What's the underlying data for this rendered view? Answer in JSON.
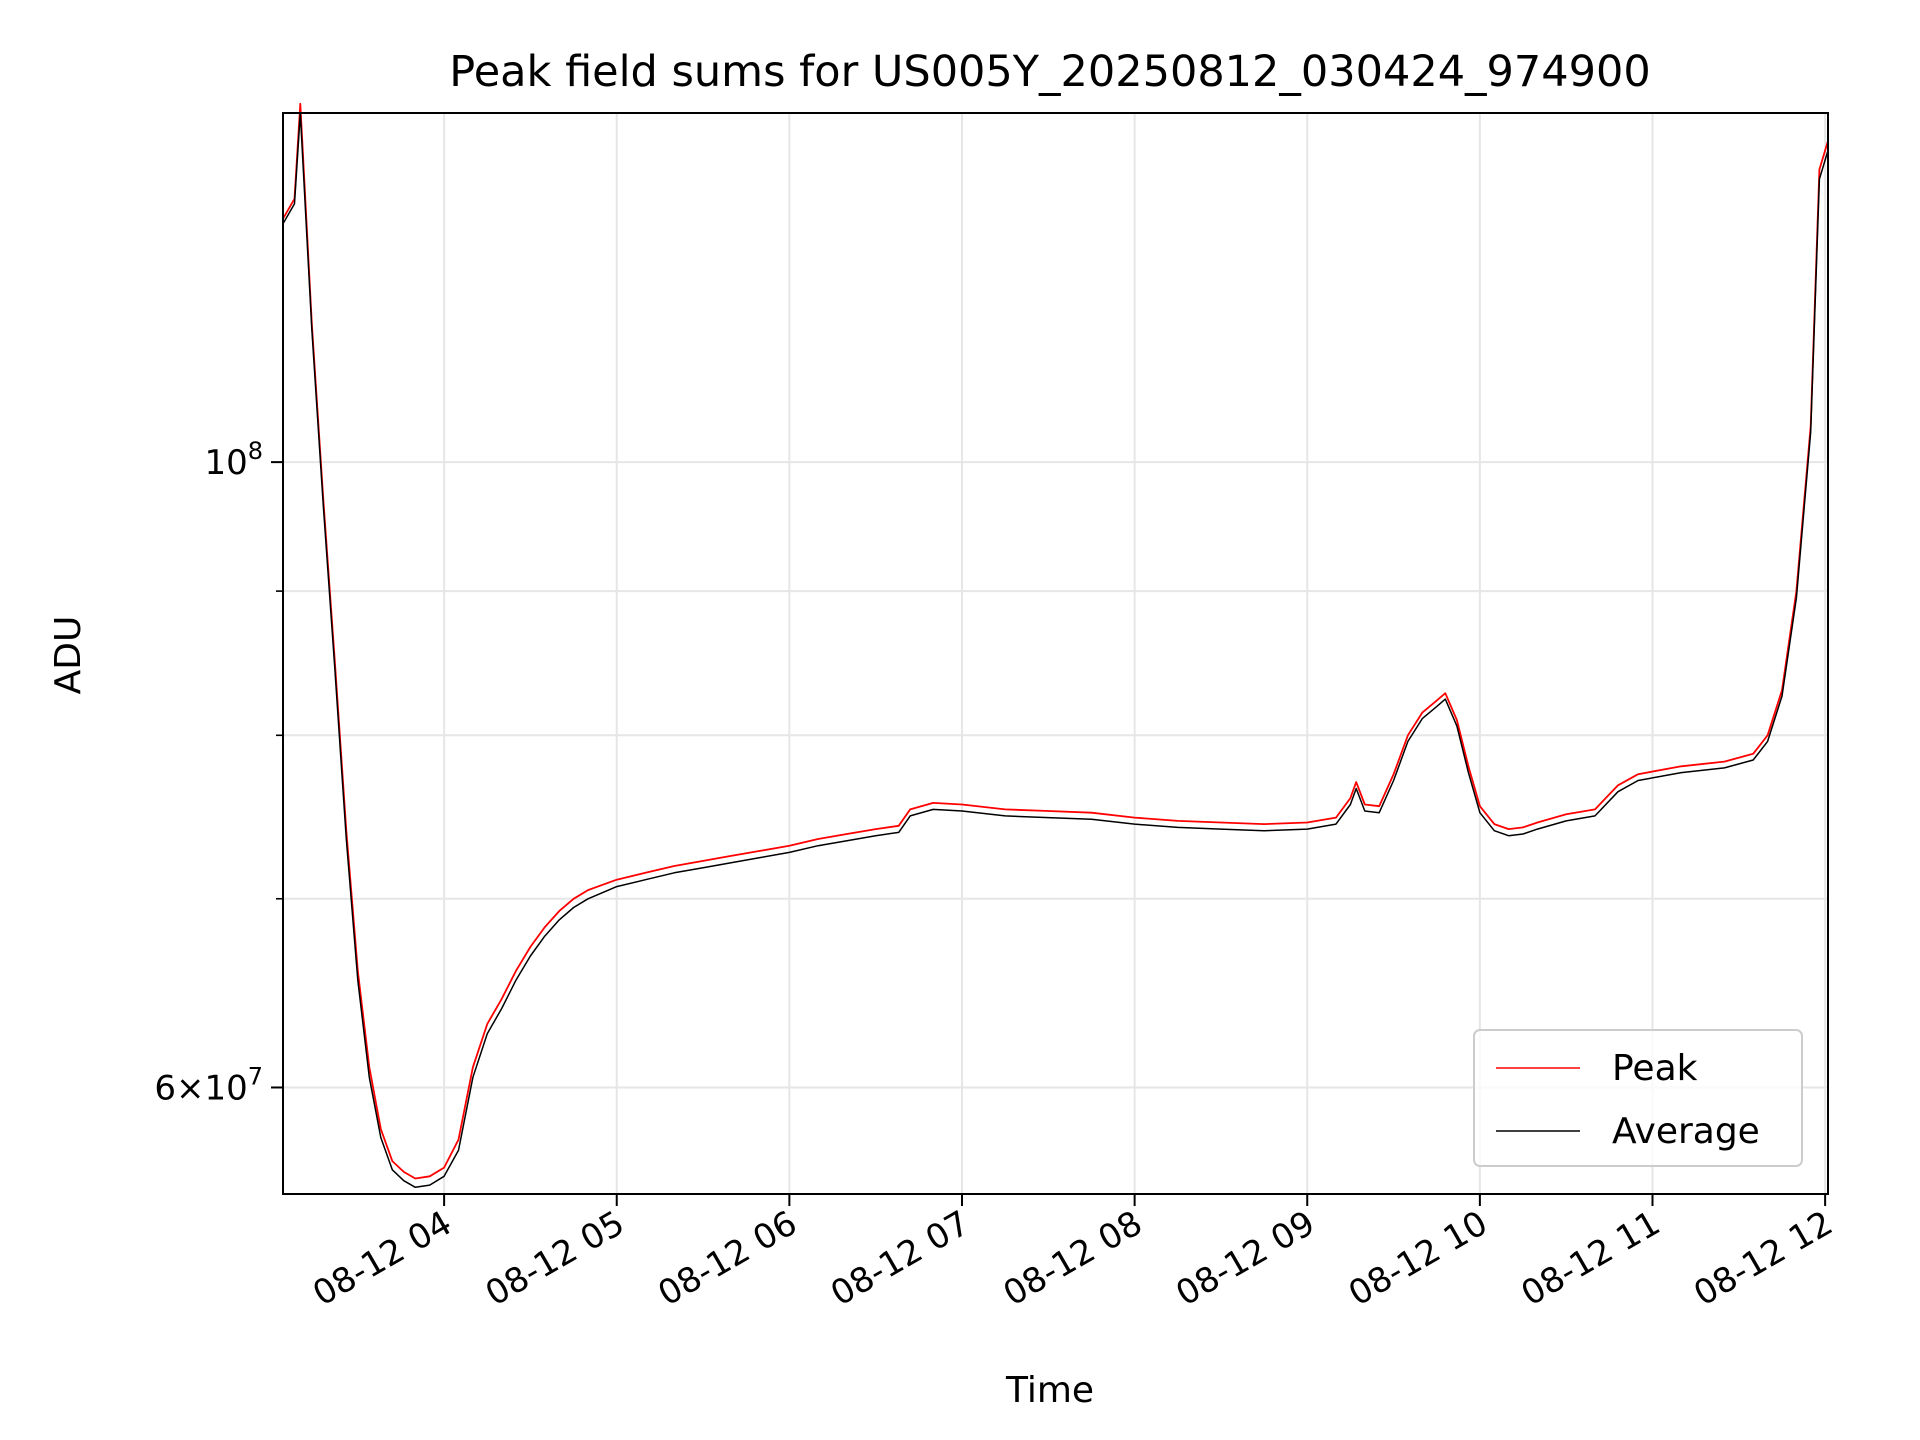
{
  "chart_data": {
    "type": "line",
    "title": "Peak field sums for US005Y_20250812_030424_974900",
    "xlabel": "Time",
    "ylabel": "ADU",
    "y_scale": "log",
    "grid": true,
    "legend_position": "lower-right",
    "x_range": [
      "2025-08-12 03:04",
      "2025-08-12 12:01"
    ],
    "ylim": [
      55000000,
      133000000
    ],
    "x_ticks": [
      {
        "label": "08-12 04",
        "time": "2025-08-12 04:00"
      },
      {
        "label": "08-12 05",
        "time": "2025-08-12 05:00"
      },
      {
        "label": "08-12 06",
        "time": "2025-08-12 06:00"
      },
      {
        "label": "08-12 07",
        "time": "2025-08-12 07:00"
      },
      {
        "label": "08-12 08",
        "time": "2025-08-12 08:00"
      },
      {
        "label": "08-12 09",
        "time": "2025-08-12 09:00"
      },
      {
        "label": "08-12 10",
        "time": "2025-08-12 10:00"
      },
      {
        "label": "08-12 11",
        "time": "2025-08-12 11:00"
      },
      {
        "label": "08-12 12",
        "time": "2025-08-12 12:00"
      }
    ],
    "y_ticks_major": [
      {
        "value": 60000000,
        "mantissa": "6",
        "exponent": "7"
      },
      {
        "value": 100000000,
        "mantissa": "",
        "exponent": "8"
      }
    ],
    "y_ticks_minor": [
      70000000,
      80000000,
      90000000
    ],
    "series": [
      {
        "name": "Peak",
        "color": "#ff0000",
        "points": [
          [
            "2025-08-12 03:04",
            122000000
          ],
          [
            "2025-08-12 03:08",
            124000000
          ],
          [
            "2025-08-12 03:10",
            134000000
          ],
          [
            "2025-08-12 03:14",
            112000000
          ],
          [
            "2025-08-12 03:18",
            97000000
          ],
          [
            "2025-08-12 03:22",
            85000000
          ],
          [
            "2025-08-12 03:26",
            74000000
          ],
          [
            "2025-08-12 03:30",
            66000000
          ],
          [
            "2025-08-12 03:34",
            61000000
          ],
          [
            "2025-08-12 03:38",
            58000000
          ],
          [
            "2025-08-12 03:42",
            56500000
          ],
          [
            "2025-08-12 03:46",
            56000000
          ],
          [
            "2025-08-12 03:50",
            55700000
          ],
          [
            "2025-08-12 03:55",
            55800000
          ],
          [
            "2025-08-12 04:00",
            56200000
          ],
          [
            "2025-08-12 04:05",
            57500000
          ],
          [
            "2025-08-12 04:10",
            61000000
          ],
          [
            "2025-08-12 04:15",
            63200000
          ],
          [
            "2025-08-12 04:20",
            64500000
          ],
          [
            "2025-08-12 04:25",
            66000000
          ],
          [
            "2025-08-12 04:30",
            67300000
          ],
          [
            "2025-08-12 04:35",
            68400000
          ],
          [
            "2025-08-12 04:40",
            69300000
          ],
          [
            "2025-08-12 04:45",
            70000000
          ],
          [
            "2025-08-12 04:50",
            70500000
          ],
          [
            "2025-08-12 05:00",
            71100000
          ],
          [
            "2025-08-12 05:10",
            71500000
          ],
          [
            "2025-08-12 05:20",
            71900000
          ],
          [
            "2025-08-12 05:30",
            72200000
          ],
          [
            "2025-08-12 05:40",
            72500000
          ],
          [
            "2025-08-12 05:50",
            72800000
          ],
          [
            "2025-08-12 06:00",
            73100000
          ],
          [
            "2025-08-12 06:10",
            73500000
          ],
          [
            "2025-08-12 06:20",
            73800000
          ],
          [
            "2025-08-12 06:30",
            74100000
          ],
          [
            "2025-08-12 06:38",
            74300000
          ],
          [
            "2025-08-12 06:42",
            75300000
          ],
          [
            "2025-08-12 06:50",
            75700000
          ],
          [
            "2025-08-12 07:00",
            75600000
          ],
          [
            "2025-08-12 07:15",
            75300000
          ],
          [
            "2025-08-12 07:30",
            75200000
          ],
          [
            "2025-08-12 07:45",
            75100000
          ],
          [
            "2025-08-12 08:00",
            74800000
          ],
          [
            "2025-08-12 08:15",
            74600000
          ],
          [
            "2025-08-12 08:30",
            74500000
          ],
          [
            "2025-08-12 08:45",
            74400000
          ],
          [
            "2025-08-12 09:00",
            74500000
          ],
          [
            "2025-08-12 09:10",
            74800000
          ],
          [
            "2025-08-12 09:15",
            76000000
          ],
          [
            "2025-08-12 09:17",
            77000000
          ],
          [
            "2025-08-12 09:20",
            75600000
          ],
          [
            "2025-08-12 09:25",
            75500000
          ],
          [
            "2025-08-12 09:30",
            77500000
          ],
          [
            "2025-08-12 09:35",
            80000000
          ],
          [
            "2025-08-12 09:40",
            81500000
          ],
          [
            "2025-08-12 09:45",
            82300000
          ],
          [
            "2025-08-12 09:48",
            82800000
          ],
          [
            "2025-08-12 09:52",
            81000000
          ],
          [
            "2025-08-12 09:56",
            78000000
          ],
          [
            "2025-08-12 10:00",
            75500000
          ],
          [
            "2025-08-12 10:05",
            74400000
          ],
          [
            "2025-08-12 10:10",
            74100000
          ],
          [
            "2025-08-12 10:15",
            74200000
          ],
          [
            "2025-08-12 10:20",
            74500000
          ],
          [
            "2025-08-12 10:30",
            75000000
          ],
          [
            "2025-08-12 10:40",
            75300000
          ],
          [
            "2025-08-12 10:48",
            76800000
          ],
          [
            "2025-08-12 10:55",
            77500000
          ],
          [
            "2025-08-12 11:10",
            78000000
          ],
          [
            "2025-08-12 11:25",
            78300000
          ],
          [
            "2025-08-12 11:35",
            78800000
          ],
          [
            "2025-08-12 11:40",
            80000000
          ],
          [
            "2025-08-12 11:45",
            83000000
          ],
          [
            "2025-08-12 11:50",
            90000000
          ],
          [
            "2025-08-12 11:55",
            103000000
          ],
          [
            "2025-08-12 11:58",
            127000000
          ],
          [
            "2025-08-12 12:01",
            130000000
          ]
        ]
      },
      {
        "name": "Average",
        "color": "#000000",
        "points": [
          [
            "2025-08-12 03:04",
            121500000
          ],
          [
            "2025-08-12 03:08",
            123500000
          ],
          [
            "2025-08-12 03:10",
            133000000
          ],
          [
            "2025-08-12 03:14",
            111500000
          ],
          [
            "2025-08-12 03:18",
            96500000
          ],
          [
            "2025-08-12 03:22",
            84500000
          ],
          [
            "2025-08-12 03:26",
            73500000
          ],
          [
            "2025-08-12 03:30",
            65500000
          ],
          [
            "2025-08-12 03:34",
            60500000
          ],
          [
            "2025-08-12 03:38",
            57600000
          ],
          [
            "2025-08-12 03:42",
            56100000
          ],
          [
            "2025-08-12 03:46",
            55600000
          ],
          [
            "2025-08-12 03:50",
            55300000
          ],
          [
            "2025-08-12 03:55",
            55400000
          ],
          [
            "2025-08-12 04:00",
            55800000
          ],
          [
            "2025-08-12 04:05",
            57000000
          ],
          [
            "2025-08-12 04:10",
            60500000
          ],
          [
            "2025-08-12 04:15",
            62700000
          ],
          [
            "2025-08-12 04:20",
            64000000
          ],
          [
            "2025-08-12 04:25",
            65500000
          ],
          [
            "2025-08-12 04:30",
            66800000
          ],
          [
            "2025-08-12 04:35",
            67900000
          ],
          [
            "2025-08-12 04:40",
            68800000
          ],
          [
            "2025-08-12 04:45",
            69500000
          ],
          [
            "2025-08-12 04:50",
            70000000
          ],
          [
            "2025-08-12 05:00",
            70700000
          ],
          [
            "2025-08-12 05:10",
            71100000
          ],
          [
            "2025-08-12 05:20",
            71500000
          ],
          [
            "2025-08-12 05:30",
            71800000
          ],
          [
            "2025-08-12 05:40",
            72100000
          ],
          [
            "2025-08-12 05:50",
            72400000
          ],
          [
            "2025-08-12 06:00",
            72700000
          ],
          [
            "2025-08-12 06:10",
            73100000
          ],
          [
            "2025-08-12 06:20",
            73400000
          ],
          [
            "2025-08-12 06:30",
            73700000
          ],
          [
            "2025-08-12 06:38",
            73900000
          ],
          [
            "2025-08-12 06:42",
            74900000
          ],
          [
            "2025-08-12 06:50",
            75300000
          ],
          [
            "2025-08-12 07:00",
            75200000
          ],
          [
            "2025-08-12 07:15",
            74900000
          ],
          [
            "2025-08-12 07:30",
            74800000
          ],
          [
            "2025-08-12 07:45",
            74700000
          ],
          [
            "2025-08-12 08:00",
            74400000
          ],
          [
            "2025-08-12 08:15",
            74200000
          ],
          [
            "2025-08-12 08:30",
            74100000
          ],
          [
            "2025-08-12 08:45",
            74000000
          ],
          [
            "2025-08-12 09:00",
            74100000
          ],
          [
            "2025-08-12 09:10",
            74400000
          ],
          [
            "2025-08-12 09:15",
            75600000
          ],
          [
            "2025-08-12 09:17",
            76600000
          ],
          [
            "2025-08-12 09:20",
            75200000
          ],
          [
            "2025-08-12 09:25",
            75100000
          ],
          [
            "2025-08-12 09:30",
            77100000
          ],
          [
            "2025-08-12 09:35",
            79600000
          ],
          [
            "2025-08-12 09:40",
            81100000
          ],
          [
            "2025-08-12 09:45",
            81900000
          ],
          [
            "2025-08-12 09:48",
            82400000
          ],
          [
            "2025-08-12 09:52",
            80600000
          ],
          [
            "2025-08-12 09:56",
            77600000
          ],
          [
            "2025-08-12 10:00",
            75100000
          ],
          [
            "2025-08-12 10:05",
            74000000
          ],
          [
            "2025-08-12 10:10",
            73700000
          ],
          [
            "2025-08-12 10:15",
            73800000
          ],
          [
            "2025-08-12 10:20",
            74100000
          ],
          [
            "2025-08-12 10:30",
            74600000
          ],
          [
            "2025-08-12 10:40",
            74900000
          ],
          [
            "2025-08-12 10:48",
            76400000
          ],
          [
            "2025-08-12 10:55",
            77100000
          ],
          [
            "2025-08-12 11:10",
            77600000
          ],
          [
            "2025-08-12 11:25",
            77900000
          ],
          [
            "2025-08-12 11:35",
            78400000
          ],
          [
            "2025-08-12 11:40",
            79600000
          ],
          [
            "2025-08-12 11:45",
            82600000
          ],
          [
            "2025-08-12 11:50",
            89500000
          ],
          [
            "2025-08-12 11:55",
            102500000
          ],
          [
            "2025-08-12 11:58",
            126000000
          ],
          [
            "2025-08-12 12:01",
            129000000
          ]
        ]
      }
    ]
  }
}
